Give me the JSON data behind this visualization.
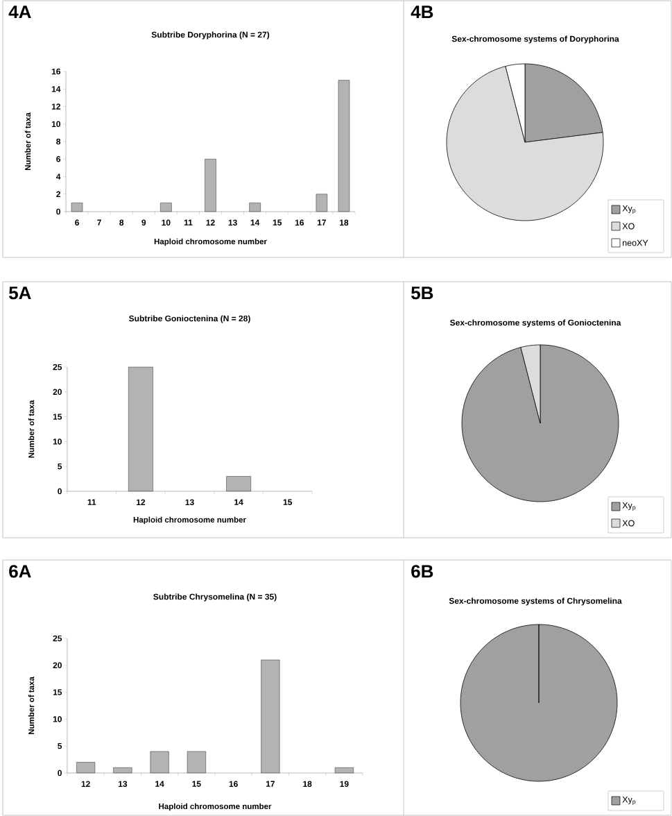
{
  "chart_data": [
    {
      "type": "bar",
      "title": "Subtribe Doryphorina (N = 27)",
      "xlabel": "Haploid chromosome number",
      "ylabel": "Number of taxa",
      "annotations": [
        "4A"
      ],
      "categories": [
        "6",
        "7",
        "8",
        "9",
        "10",
        "11",
        "12",
        "13",
        "14",
        "15",
        "16",
        "17",
        "18"
      ],
      "values": [
        1,
        null,
        null,
        null,
        1,
        null,
        6,
        null,
        1,
        null,
        null,
        2,
        15
      ],
      "color": "#b3b3b5",
      "ylim": [
        0,
        16
      ],
      "yticks": [
        0,
        2,
        4,
        6,
        8,
        10,
        12,
        14,
        16
      ]
    },
    {
      "type": "pie",
      "title": "Sex-chromosome systems of Doryphorina",
      "annotations": [
        "4B"
      ],
      "categories": [
        "Xy$_{p}$",
        "XO",
        "neoXY"
      ],
      "values": [
        23,
        73,
        4
      ],
      "colors": [
        "#a0a0a2",
        "#dcdcdc",
        "#ffffff"
      ],
      "legend": "bottom right"
    },
    {
      "type": "bar",
      "title": "Subtribe Gonioctenina (N = 28)",
      "xlabel": "Haploid chromosome number",
      "ylabel": "Number of taxa",
      "annotations": [
        "5A"
      ],
      "categories": [
        "11",
        "12",
        "13",
        "14",
        "15"
      ],
      "values": [
        null,
        25,
        null,
        3,
        null
      ],
      "color": "#b3b3b5",
      "ylim": [
        0,
        25
      ],
      "yticks": [
        0,
        5,
        10,
        15,
        20,
        25
      ]
    },
    {
      "type": "pie",
      "title": "Sex-chromosome systems of Gonioctenina",
      "annotations": [
        "5B"
      ],
      "categories": [
        "Xy$_{p}$",
        "XO"
      ],
      "values": [
        96,
        4
      ],
      "colors": [
        "#a0a0a2",
        "#dcdcdc"
      ],
      "legend": "bottom right"
    },
    {
      "type": "bar",
      "title": "Subtribe Chrysomelina (N = 35)",
      "xlabel": "Haploid chromosome number",
      "ylabel": "Number of taxa",
      "annotations": [
        "6A"
      ],
      "categories": [
        "12",
        "13",
        "14",
        "15",
        "16",
        "17",
        "18",
        "19"
      ],
      "values": [
        2,
        1,
        4,
        4,
        null,
        21,
        null,
        1
      ],
      "color": "#b3b3b5",
      "ylim": [
        0,
        25
      ],
      "yticks": [
        0,
        5,
        10,
        15,
        20,
        25
      ]
    },
    {
      "type": "pie",
      "title": "Sex-chromosome systems of Chrysomelina",
      "annotations": [
        "6B"
      ],
      "categories": [
        "Xy$_{p}$"
      ],
      "values": [
        100
      ],
      "colors": [
        "#a0a0a2"
      ],
      "legend": "bottom right"
    }
  ]
}
